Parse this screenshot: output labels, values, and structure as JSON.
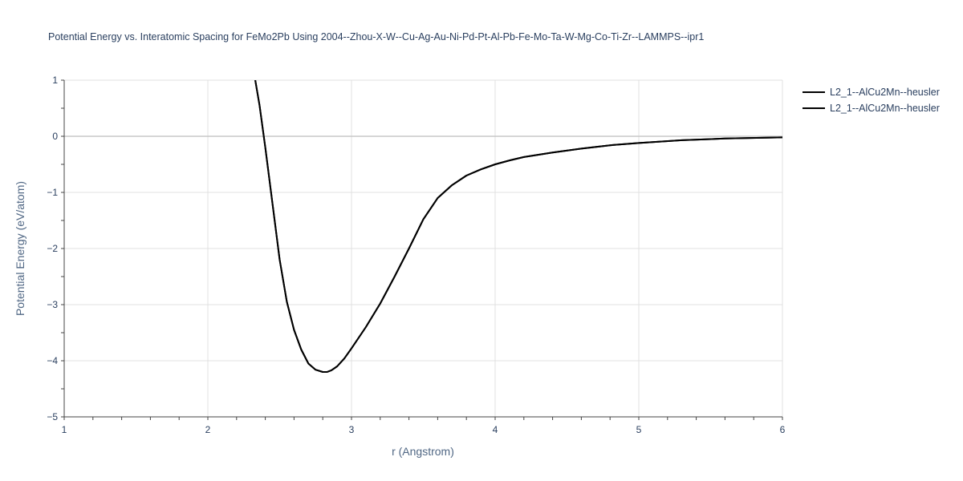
{
  "chart_data": {
    "type": "line",
    "title": "Potential Energy vs. Interatomic Spacing for FeMo2Pb Using 2004--Zhou-X-W--Cu-Ag-Au-Ni-Pd-Pt-Al-Pb-Fe-Mo-Ta-W-Mg-Co-Ti-Zr--LAMMPS--ipr1",
    "xlabel": "r (Angstrom)",
    "ylabel": "Potential Energy (eV/atom)",
    "xlim": [
      1,
      6
    ],
    "ylim": [
      -5,
      1
    ],
    "x_ticks": [
      1,
      2,
      3,
      4,
      5,
      6
    ],
    "y_ticks": [
      1,
      0,
      -1,
      -2,
      -3,
      -4,
      -5
    ],
    "grid": true,
    "legend_position": "top-right",
    "series": [
      {
        "name": "L2_1--AlCu2Mn--heusler",
        "color": "#000000",
        "x": [
          2.33,
          2.36,
          2.4,
          2.45,
          2.5,
          2.55,
          2.6,
          2.65,
          2.7,
          2.75,
          2.8,
          2.83,
          2.86,
          2.9,
          2.95,
          3.0,
          3.1,
          3.2,
          3.3,
          3.4,
          3.5,
          3.6,
          3.7,
          3.8,
          3.9,
          4.0,
          4.1,
          4.2,
          4.4,
          4.6,
          4.8,
          5.0,
          5.3,
          5.6,
          6.0
        ],
        "y": [
          1.0,
          0.55,
          -0.2,
          -1.2,
          -2.2,
          -2.95,
          -3.45,
          -3.8,
          -4.05,
          -4.16,
          -4.2,
          -4.2,
          -4.17,
          -4.1,
          -3.96,
          -3.78,
          -3.4,
          -2.98,
          -2.5,
          -2.0,
          -1.48,
          -1.1,
          -0.87,
          -0.7,
          -0.59,
          -0.5,
          -0.43,
          -0.37,
          -0.29,
          -0.22,
          -0.16,
          -0.12,
          -0.07,
          -0.04,
          -0.02
        ]
      },
      {
        "name": "L2_1--AlCu2Mn--heusler",
        "color": "#000000",
        "x": [
          2.33,
          2.36,
          2.4,
          2.45,
          2.5,
          2.55,
          2.6,
          2.65,
          2.7,
          2.75,
          2.8,
          2.83,
          2.86,
          2.9,
          2.95,
          3.0,
          3.1,
          3.2,
          3.3,
          3.4,
          3.5,
          3.6,
          3.7,
          3.8,
          3.9,
          4.0,
          4.1,
          4.2,
          4.4,
          4.6,
          4.8,
          5.0,
          5.3,
          5.6,
          6.0
        ],
        "y": [
          1.0,
          0.55,
          -0.2,
          -1.2,
          -2.2,
          -2.95,
          -3.45,
          -3.8,
          -4.05,
          -4.16,
          -4.2,
          -4.2,
          -4.17,
          -4.1,
          -3.96,
          -3.78,
          -3.4,
          -2.98,
          -2.5,
          -2.0,
          -1.48,
          -1.1,
          -0.87,
          -0.7,
          -0.59,
          -0.5,
          -0.43,
          -0.37,
          -0.29,
          -0.22,
          -0.16,
          -0.12,
          -0.07,
          -0.04,
          -0.02
        ]
      }
    ]
  }
}
